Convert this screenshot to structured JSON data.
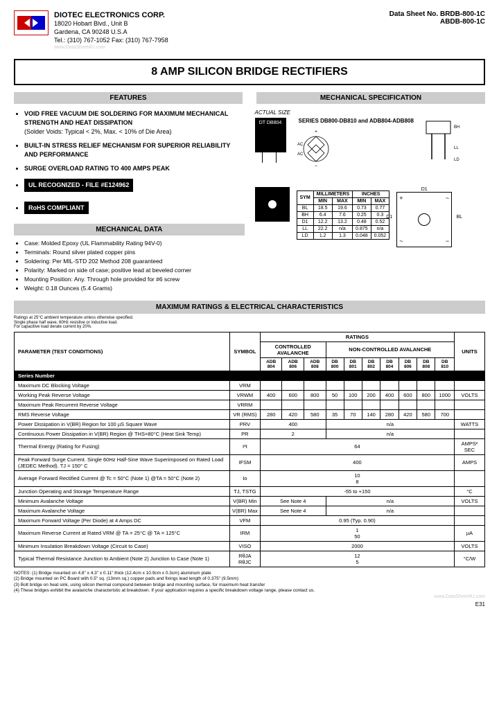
{
  "header": {
    "company_name": "DIOTEC  ELECTRONICS  CORP.",
    "address1": "18020 Hobart Blvd., Unit B",
    "address2": "Gardena, CA  90248   U.S.A",
    "tel": "Tel.: (310) 767-1052   Fax: (310) 767-7958",
    "datasheet1": "Data Sheet No.  BRDB-800-1C",
    "datasheet2": "ABDB-800-1C"
  },
  "title": "8 AMP SILICON  BRIDGE RECTIFIERS",
  "sections": {
    "features": "FEATURES",
    "mech_spec": "MECHANICAL  SPECIFICATION",
    "mech_data": "MECHANICAL DATA",
    "max_ratings": "MAXIMUM RATINGS & ELECTRICAL CHARACTERISTICS"
  },
  "features": [
    {
      "main": "VOID FREE VACUUM DIE SOLDERING FOR MAXIMUM MECHANICAL STRENGTH AND HEAT DISSIPATION",
      "sub": "(Solder Voids: Typical < 2%, Max. < 10% of Die Area)"
    },
    {
      "main": "BUILT-IN STRESS RELIEF MECHANISM FOR SUPERIOR RELIABILITY AND PERFORMANCE",
      "sub": ""
    },
    {
      "main": "SURGE OVERLOAD RATING TO 400 AMPS PEAK",
      "sub": ""
    }
  ],
  "black_labels": {
    "ul": "UL  RECOGNIZED - FILE #E124962",
    "rohs": "RoHS COMPLIANT"
  },
  "mech_data": [
    "Case:  Molded Epoxy (UL Flammability Rating 94V-0)",
    "Terminals: Round silver plated copper pins",
    "Soldering: Per MIL-STD 202 Method 208 guaranteed",
    "Polarity: Marked on side of case; positive lead at beveled corner",
    "Mounting Position: Any.  Through hole provided for #6 screw",
    "Weight: 0.18 Ounces (5.4 Grams)"
  ],
  "mech_spec": {
    "actual_size": "ACTUAL SIZE",
    "chip_label": "DT DB804",
    "series": "SERIES DB800-DB810 and ADB804-ADB808"
  },
  "dim_table": {
    "headers": [
      "SYM",
      "MILLIMETERS",
      "INCHES"
    ],
    "sub": [
      "",
      "MIN",
      "MAX",
      "MIN",
      "MAX"
    ],
    "rows": [
      [
        "BL",
        "18.5",
        "19.6",
        "0.73",
        "0.77"
      ],
      [
        "BH",
        "6.4",
        "7.6",
        "0.25",
        "0.3"
      ],
      [
        "D1",
        "12.2",
        "13.2",
        "0.48",
        "0.52"
      ],
      [
        "LL",
        "22.2",
        "n/a",
        "0.875",
        "n/a"
      ],
      [
        "LD",
        "1.2",
        "1.3",
        "0.048",
        "0.052"
      ]
    ]
  },
  "ratings_note": "Ratings at 25°C ambient temperature unless otherwise specified.\nSingle phase half wave, 60Hz resistive or inductive load.\nFor capacitive load derate current by 20%.",
  "ratings": {
    "cols": {
      "param": "PARAMETER (TEST CONDITIONS)",
      "symbol": "SYMBOL",
      "ratings": "RATINGS",
      "controlled": "CONTROLLED AVALANCHE",
      "noncontrolled": "NON-CONTROLLED AVALANCHE",
      "units": "UNITS",
      "series": [
        "ADB 804",
        "ADB 806",
        "ADB 808",
        "DB 800",
        "DB 801",
        "DB 802",
        "DB 804",
        "DB 806",
        "DB 808",
        "DB 810"
      ]
    },
    "series_label": "Series Number",
    "rows": [
      {
        "param": "Maximum DC Blocking Voltage",
        "sym": "VRM",
        "vals": [
          "",
          "",
          "",
          "",
          "",
          "",
          "",
          "",
          "",
          ""
        ],
        "units": ""
      },
      {
        "param": "Working Peak Reverse Voltage",
        "sym": "VRWM",
        "vals": [
          "400",
          "600",
          "800",
          "50",
          "100",
          "200",
          "400",
          "600",
          "800",
          "1000"
        ],
        "units": "VOLTS",
        "merge3": true
      },
      {
        "param": "Maximum Peak Recurrent Reverse Voltage",
        "sym": "VRRM",
        "vals": [
          "",
          "",
          "",
          "",
          "",
          "",
          "",
          "",
          "",
          ""
        ],
        "units": ""
      },
      {
        "param": "RMS Reverse Voltage",
        "sym": "VR (RMS)",
        "vals": [
          "280",
          "420",
          "580",
          "35",
          "70",
          "140",
          "280",
          "420",
          "580",
          "700"
        ],
        "units": ""
      },
      {
        "param": "Power Dissipation in V(BR) Region for 100 µS Square Wave",
        "sym": "PRV",
        "vals_span": [
          {
            "t": "400",
            "c": 3
          },
          {
            "t": "n/a",
            "c": 7
          }
        ],
        "units": "WATTS"
      },
      {
        "param": "Continuous Power Dissipation in V(BR) Region @ THS=80°C (Heat Sink Temp)",
        "sym": "PR",
        "vals_span": [
          {
            "t": "2",
            "c": 3
          },
          {
            "t": "n/a",
            "c": 7
          }
        ],
        "units": ""
      },
      {
        "param": "Thermal Energy (Rating for Fusing)",
        "sym": "I²t",
        "vals_span": [
          {
            "t": "64",
            "c": 10
          }
        ],
        "units": "AMPS² SEC"
      },
      {
        "param": "Peak Forward Surge Current.  Single 60Hz Half-Sine Wave Superimposed on Rated Load (JEDEC Method).  TJ = 150° C",
        "sym": "IFSM",
        "vals_span": [
          {
            "t": "400",
            "c": 10
          }
        ],
        "units": "AMPS"
      },
      {
        "param": "Average Forward Rectified Current    @ Tc = 50°C (Note 1)  @TA = 50°C (Note 2)",
        "sym": "Io",
        "vals_span": [
          {
            "t": "10",
            "c": 10
          },
          {
            "t": "8",
            "c": 10
          }
        ],
        "units": "",
        "two_line": true
      },
      {
        "param": "Junction Operating and Storage Temperature Range",
        "sym": "TJ, TSTG",
        "vals_span": [
          {
            "t": "-55 to +150",
            "c": 10
          }
        ],
        "units": "°C"
      },
      {
        "param": "Minimum Avalanche Voltage",
        "sym": "V(BR) Min",
        "vals_span": [
          {
            "t": "See Note 4",
            "c": 3
          },
          {
            "t": "n/a",
            "c": 7
          }
        ],
        "units": "VOLTS"
      },
      {
        "param": "Maximum Avalanche Voltage",
        "sym": "V(BR) Max",
        "vals_span": [
          {
            "t": "See Note 4",
            "c": 3
          },
          {
            "t": "n/a",
            "c": 7
          }
        ],
        "units": ""
      },
      {
        "param": "Maximum Forward Voltage (Per Diode) at 4 Amps DC",
        "sym": "VFM",
        "vals_span": [
          {
            "t": "0.95 (Typ. 0.90)",
            "c": 10
          }
        ],
        "units": ""
      },
      {
        "param": "Maximum Reverse Current at Rated VRM    @ TA = 25°C  @ TA = 125°C",
        "sym": "IRM",
        "vals_span": [
          {
            "t": "1",
            "c": 10
          },
          {
            "t": "50",
            "c": 10
          }
        ],
        "units": "µA",
        "two_line": true
      },
      {
        "param": "Minimum Insulation Breakdown Voltage (Circuit  to Case)",
        "sym": "VISO",
        "vals_span": [
          {
            "t": "2000",
            "c": 10
          }
        ],
        "units": "VOLTS"
      },
      {
        "param": "Typical Thermal Resistance    Junction to Ambient (Note 2)  Junction to Case (Note 1)",
        "sym": "RθJA RθJC",
        "vals_span": [
          {
            "t": "12",
            "c": 10
          },
          {
            "t": "5",
            "c": 10
          }
        ],
        "units": "°C/W",
        "two_line": true
      }
    ]
  },
  "footer_notes": "NOTES: (1) Bridge mounted on 4.8\" x 4.3\" x 0.11\" thick (12.4cm x 10.9cm x 0.3cm) aluminum plate\n(2) Bridge mounted on PC Board with 0.5\" sq. (13mm sq.) copper pads and fixings lead length of 0.375\" (9.5mm)\n(3) Bolt bridge on heat sink, using silicon thermal compound between bridge and mounting surface, for maximum  heat transfer\n(4) These bridges exhibit the avalanche characteristic at breakdown.  If your application requires a specific breakdown voltage range, please contact us.",
  "page_num": "E31",
  "watermark1": "www.DataSheet4U.com",
  "watermark2": "www.DataSheet4U.com"
}
